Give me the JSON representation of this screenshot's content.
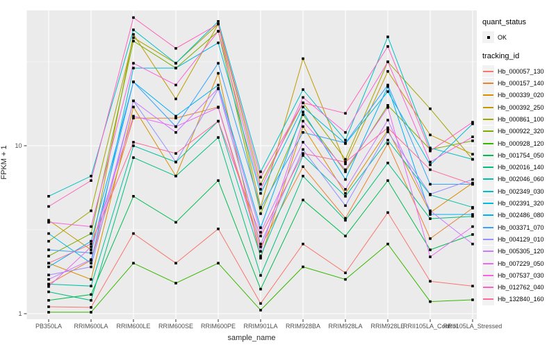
{
  "legend": {
    "quant_status_title": "quant_status",
    "quant_status_value": "OK",
    "tracking_id_title": "tracking_id"
  },
  "panel": {
    "background": "#EBEBEB",
    "grid_color": "#FFFFFF",
    "tick_color": "#333333",
    "tick_label_color": "#4D4D4D",
    "point_color": "#000000"
  },
  "chart_data": {
    "type": "line",
    "title": "",
    "xlabel": "sample_name",
    "ylabel": "FPKM + 1",
    "yscale": "log10",
    "y_ticks": [
      1,
      10
    ],
    "y_minor_ticks": [
      3.1623,
      31.623
    ],
    "ylim": [
      0.95,
      65
    ],
    "grid": true,
    "legend_position": "right",
    "categories": [
      "PB350LA",
      "RRIM600LA",
      "RRIM600LE",
      "RRIM600SE",
      "RRIM600PE",
      "RRIM901LA",
      "RRIM928BA",
      "RRIM928LA",
      "RRIM928LE",
      "RRII105LA_Control",
      "RRII105LA_Stressed"
    ],
    "series": [
      {
        "name": "Hb_000057_130",
        "color": "#F8766D",
        "values": [
          1.1,
          1.09,
          3.0,
          2.0,
          3.2,
          1.15,
          2.6,
          1.75,
          4.0,
          1.56,
          1.46
        ]
      },
      {
        "name": "Hb_000157_140",
        "color": "#EA8331",
        "values": [
          1.5,
          2.08,
          14.6,
          14.6,
          17.0,
          2.5,
          7.5,
          3.7,
          10.3,
          2.8,
          4.25
        ]
      },
      {
        "name": "Hb_000339_020",
        "color": "#D89000",
        "values": [
          2.0,
          1.6,
          17.0,
          6.6,
          27.0,
          2.14,
          13.0,
          5.2,
          12.4,
          4.0,
          6.0
        ]
      },
      {
        "name": "Hb_000392_250",
        "color": "#C09B00",
        "values": [
          3.6,
          2.4,
          46.0,
          19.0,
          53.0,
          4.3,
          33.0,
          7.8,
          27.7,
          11.6,
          8.9
        ]
      },
      {
        "name": "Hb_000861_100",
        "color": "#A3A500",
        "values": [
          2.7,
          4.1,
          44.0,
          31.0,
          53.0,
          5.9,
          18.0,
          8.3,
          31.6,
          16.6,
          8.3
        ]
      },
      {
        "name": "Hb_000922_320",
        "color": "#7CAE00",
        "values": [
          2.2,
          3.0,
          42.0,
          29.0,
          48.0,
          3.94,
          15.3,
          7.0,
          17.4,
          9.5,
          10.7
        ]
      },
      {
        "name": "Hb_000928_120",
        "color": "#39B600",
        "values": [
          1.02,
          1.02,
          2.0,
          1.52,
          2.0,
          1.05,
          1.9,
          1.6,
          2.6,
          1.18,
          1.21
        ]
      },
      {
        "name": "Hb_001754_050",
        "color": "#00BB4E",
        "values": [
          1.2,
          1.3,
          5.0,
          3.5,
          6.2,
          1.4,
          4.75,
          2.9,
          6.2,
          2.4,
          2.96
        ]
      },
      {
        "name": "Hb_002016_140",
        "color": "#00BF7D",
        "values": [
          1.35,
          1.2,
          8.5,
          6.6,
          11.2,
          1.69,
          6.6,
          3.6,
          7.9,
          3.68,
          3.8
        ]
      },
      {
        "name": "Hb_002046_060",
        "color": "#00C1A3",
        "values": [
          1.5,
          1.46,
          10.0,
          8.0,
          14.0,
          2.2,
          8.75,
          5.0,
          10.8,
          5.1,
          4.3
        ]
      },
      {
        "name": "Hb_002349_030",
        "color": "#00BFC4",
        "values": [
          5.0,
          6.6,
          49.0,
          31.0,
          55.0,
          7.0,
          21.6,
          10.8,
          44.5,
          9.7,
          8.3
        ]
      },
      {
        "name": "Hb_002391_320",
        "color": "#00BAE0",
        "values": [
          3.0,
          2.0,
          29.0,
          29.0,
          41.0,
          5.2,
          17.0,
          10.3,
          21.0,
          7.7,
          13.5
        ]
      },
      {
        "name": "Hb_002486_080",
        "color": "#00B0F6",
        "values": [
          1.9,
          2.7,
          24.0,
          15.0,
          23.0,
          3.25,
          15.9,
          6.3,
          22.5,
          3.9,
          3.9
        ]
      },
      {
        "name": "Hb_003371_070",
        "color": "#35A2FF",
        "values": [
          2.4,
          2.3,
          24.0,
          13.0,
          31.0,
          4.25,
          12.0,
          10.4,
          23.0,
          5.9,
          5.9
        ]
      },
      {
        "name": "Hb_004129_010",
        "color": "#9590FF",
        "values": [
          1.7,
          1.9,
          18.5,
          8.0,
          21.8,
          2.6,
          9.5,
          4.4,
          12.1,
          5.14,
          6.3
        ]
      },
      {
        "name": "Hb_005305_120",
        "color": "#C77CFF",
        "values": [
          1.6,
          2.1,
          18.5,
          12.0,
          22.0,
          3.05,
          10.5,
          5.5,
          14.2,
          4.1,
          2.6
        ]
      },
      {
        "name": "Hb_007229_050",
        "color": "#E76BF3",
        "values": [
          1.45,
          2.5,
          15.0,
          13.0,
          16.9,
          2.35,
          14.0,
          7.2,
          16.9,
          2.18,
          3.3
        ]
      },
      {
        "name": "Hb_007537_030",
        "color": "#FA62DB",
        "values": [
          3.5,
          3.3,
          31.0,
          23.0,
          48.0,
          5.5,
          19.4,
          12.0,
          31.6,
          8.0,
          11.3
        ]
      },
      {
        "name": "Hb_012762_040",
        "color": "#FF62BC",
        "values": [
          4.35,
          6.2,
          58.0,
          38.0,
          53.0,
          6.5,
          18.0,
          15.6,
          39.0,
          9.3,
          13.8
        ]
      },
      {
        "name": "Hb_132840_160",
        "color": "#FF6A98",
        "values": [
          2.0,
          2.6,
          10.5,
          9.0,
          14.0,
          2.9,
          9.0,
          8.0,
          12.8,
          7.2,
          5.9
        ]
      }
    ]
  }
}
